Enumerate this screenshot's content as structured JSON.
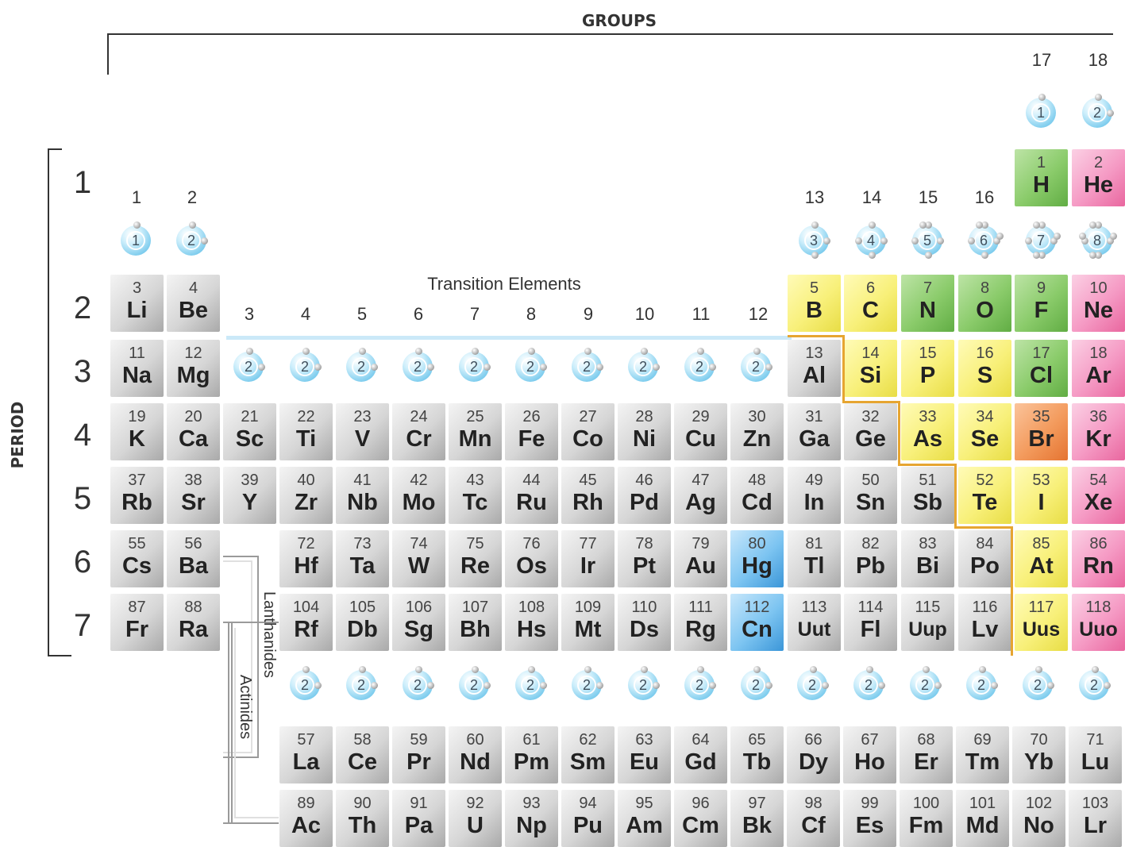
{
  "labels": {
    "groups": "GROUPS",
    "period": "PERIOD",
    "transition": "Transition Elements",
    "lanthanides": "Lanthanides",
    "actinides": "Actinides"
  },
  "periods": [
    "1",
    "2",
    "3",
    "4",
    "5",
    "6",
    "7"
  ],
  "group_numbers": [
    "1",
    "2",
    "3",
    "4",
    "5",
    "6",
    "7",
    "8",
    "9",
    "10",
    "11",
    "12",
    "13",
    "14",
    "15",
    "16",
    "17",
    "18"
  ],
  "valence_shells": {
    "top": [
      "1",
      "2"
    ],
    "group_a": [
      "1",
      "2"
    ],
    "group_b": [
      "3",
      "4",
      "5",
      "6",
      "7",
      "8"
    ],
    "transition": [
      "2",
      "2",
      "2",
      "2",
      "2",
      "2",
      "2",
      "2",
      "2",
      "2"
    ],
    "f_block": [
      "2",
      "2",
      "2",
      "2",
      "2",
      "2",
      "2",
      "2",
      "2",
      "2",
      "2",
      "2",
      "2",
      "2",
      "2"
    ]
  },
  "elements": [
    {
      "num": "1",
      "sym": "H"
    },
    {
      "num": "2",
      "sym": "He"
    },
    {
      "num": "3",
      "sym": "Li"
    },
    {
      "num": "4",
      "sym": "Be"
    },
    {
      "num": "5",
      "sym": "B"
    },
    {
      "num": "6",
      "sym": "C"
    },
    {
      "num": "7",
      "sym": "N"
    },
    {
      "num": "8",
      "sym": "O"
    },
    {
      "num": "9",
      "sym": "F"
    },
    {
      "num": "10",
      "sym": "Ne"
    },
    {
      "num": "11",
      "sym": "Na"
    },
    {
      "num": "12",
      "sym": "Mg"
    },
    {
      "num": "13",
      "sym": "Al"
    },
    {
      "num": "14",
      "sym": "Si"
    },
    {
      "num": "15",
      "sym": "P"
    },
    {
      "num": "16",
      "sym": "S"
    },
    {
      "num": "17",
      "sym": "Cl"
    },
    {
      "num": "18",
      "sym": "Ar"
    },
    {
      "num": "19",
      "sym": "K"
    },
    {
      "num": "20",
      "sym": "Ca"
    },
    {
      "num": "21",
      "sym": "Sc"
    },
    {
      "num": "22",
      "sym": "Ti"
    },
    {
      "num": "23",
      "sym": "V"
    },
    {
      "num": "24",
      "sym": "Cr"
    },
    {
      "num": "25",
      "sym": "Mn"
    },
    {
      "num": "26",
      "sym": "Fe"
    },
    {
      "num": "27",
      "sym": "Co"
    },
    {
      "num": "28",
      "sym": "Ni"
    },
    {
      "num": "29",
      "sym": "Cu"
    },
    {
      "num": "30",
      "sym": "Zn"
    },
    {
      "num": "31",
      "sym": "Ga"
    },
    {
      "num": "32",
      "sym": "Ge"
    },
    {
      "num": "33",
      "sym": "As"
    },
    {
      "num": "34",
      "sym": "Se"
    },
    {
      "num": "35",
      "sym": "Br"
    },
    {
      "num": "36",
      "sym": "Kr"
    },
    {
      "num": "37",
      "sym": "Rb"
    },
    {
      "num": "38",
      "sym": "Sr"
    },
    {
      "num": "39",
      "sym": "Y"
    },
    {
      "num": "40",
      "sym": "Zr"
    },
    {
      "num": "41",
      "sym": "Nb"
    },
    {
      "num": "42",
      "sym": "Mo"
    },
    {
      "num": "43",
      "sym": "Tc"
    },
    {
      "num": "44",
      "sym": "Ru"
    },
    {
      "num": "45",
      "sym": "Rh"
    },
    {
      "num": "46",
      "sym": "Pd"
    },
    {
      "num": "47",
      "sym": "Ag"
    },
    {
      "num": "48",
      "sym": "Cd"
    },
    {
      "num": "49",
      "sym": "In"
    },
    {
      "num": "50",
      "sym": "Sn"
    },
    {
      "num": "51",
      "sym": "Sb"
    },
    {
      "num": "52",
      "sym": "Te"
    },
    {
      "num": "53",
      "sym": "I"
    },
    {
      "num": "54",
      "sym": "Xe"
    },
    {
      "num": "55",
      "sym": "Cs"
    },
    {
      "num": "56",
      "sym": "Ba"
    },
    {
      "num": "72",
      "sym": "Hf"
    },
    {
      "num": "73",
      "sym": "Ta"
    },
    {
      "num": "74",
      "sym": "W"
    },
    {
      "num": "75",
      "sym": "Re"
    },
    {
      "num": "76",
      "sym": "Os"
    },
    {
      "num": "77",
      "sym": "Ir"
    },
    {
      "num": "78",
      "sym": "Pt"
    },
    {
      "num": "79",
      "sym": "Au"
    },
    {
      "num": "80",
      "sym": "Hg"
    },
    {
      "num": "81",
      "sym": "Tl"
    },
    {
      "num": "82",
      "sym": "Pb"
    },
    {
      "num": "83",
      "sym": "Bi"
    },
    {
      "num": "84",
      "sym": "Po"
    },
    {
      "num": "85",
      "sym": "At"
    },
    {
      "num": "86",
      "sym": "Rn"
    },
    {
      "num": "87",
      "sym": "Fr"
    },
    {
      "num": "88",
      "sym": "Ra"
    },
    {
      "num": "104",
      "sym": "Rf"
    },
    {
      "num": "105",
      "sym": "Db"
    },
    {
      "num": "106",
      "sym": "Sg"
    },
    {
      "num": "107",
      "sym": "Bh"
    },
    {
      "num": "108",
      "sym": "Hs"
    },
    {
      "num": "109",
      "sym": "Mt"
    },
    {
      "num": "110",
      "sym": "Ds"
    },
    {
      "num": "111",
      "sym": "Rg"
    },
    {
      "num": "112",
      "sym": "Cn"
    },
    {
      "num": "113",
      "sym": "Uut"
    },
    {
      "num": "114",
      "sym": "Fl"
    },
    {
      "num": "115",
      "sym": "Uup"
    },
    {
      "num": "116",
      "sym": "Lv"
    },
    {
      "num": "117",
      "sym": "Uus"
    },
    {
      "num": "118",
      "sym": "Uuo"
    },
    {
      "num": "57",
      "sym": "La"
    },
    {
      "num": "58",
      "sym": "Ce"
    },
    {
      "num": "59",
      "sym": "Pr"
    },
    {
      "num": "60",
      "sym": "Nd"
    },
    {
      "num": "61",
      "sym": "Pm"
    },
    {
      "num": "62",
      "sym": "Sm"
    },
    {
      "num": "63",
      "sym": "Eu"
    },
    {
      "num": "64",
      "sym": "Gd"
    },
    {
      "num": "65",
      "sym": "Tb"
    },
    {
      "num": "66",
      "sym": "Dy"
    },
    {
      "num": "67",
      "sym": "Ho"
    },
    {
      "num": "68",
      "sym": "Er"
    },
    {
      "num": "69",
      "sym": "Tm"
    },
    {
      "num": "70",
      "sym": "Yb"
    },
    {
      "num": "71",
      "sym": "Lu"
    },
    {
      "num": "89",
      "sym": "Ac"
    },
    {
      "num": "90",
      "sym": "Th"
    },
    {
      "num": "91",
      "sym": "Pa"
    },
    {
      "num": "92",
      "sym": "U"
    },
    {
      "num": "93",
      "sym": "Np"
    },
    {
      "num": "94",
      "sym": "Pu"
    },
    {
      "num": "95",
      "sym": "Am"
    },
    {
      "num": "96",
      "sym": "Cm"
    },
    {
      "num": "97",
      "sym": "Bk"
    },
    {
      "num": "98",
      "sym": "Cf"
    },
    {
      "num": "99",
      "sym": "Es"
    },
    {
      "num": "100",
      "sym": "Fm"
    },
    {
      "num": "101",
      "sym": "Md"
    },
    {
      "num": "102",
      "sym": "No"
    },
    {
      "num": "103",
      "sym": "Lr"
    }
  ],
  "colors": {
    "gray": "#c8c8c8",
    "green": "#8acb6a",
    "yellow": "#f8f07a",
    "yellow_green": "#dcea7a",
    "pink": "#f59ac4",
    "orange": "#f39a5c",
    "blue": "#7cc4f1",
    "staircase": "#e6a531",
    "shell": "#7fcdee"
  }
}
